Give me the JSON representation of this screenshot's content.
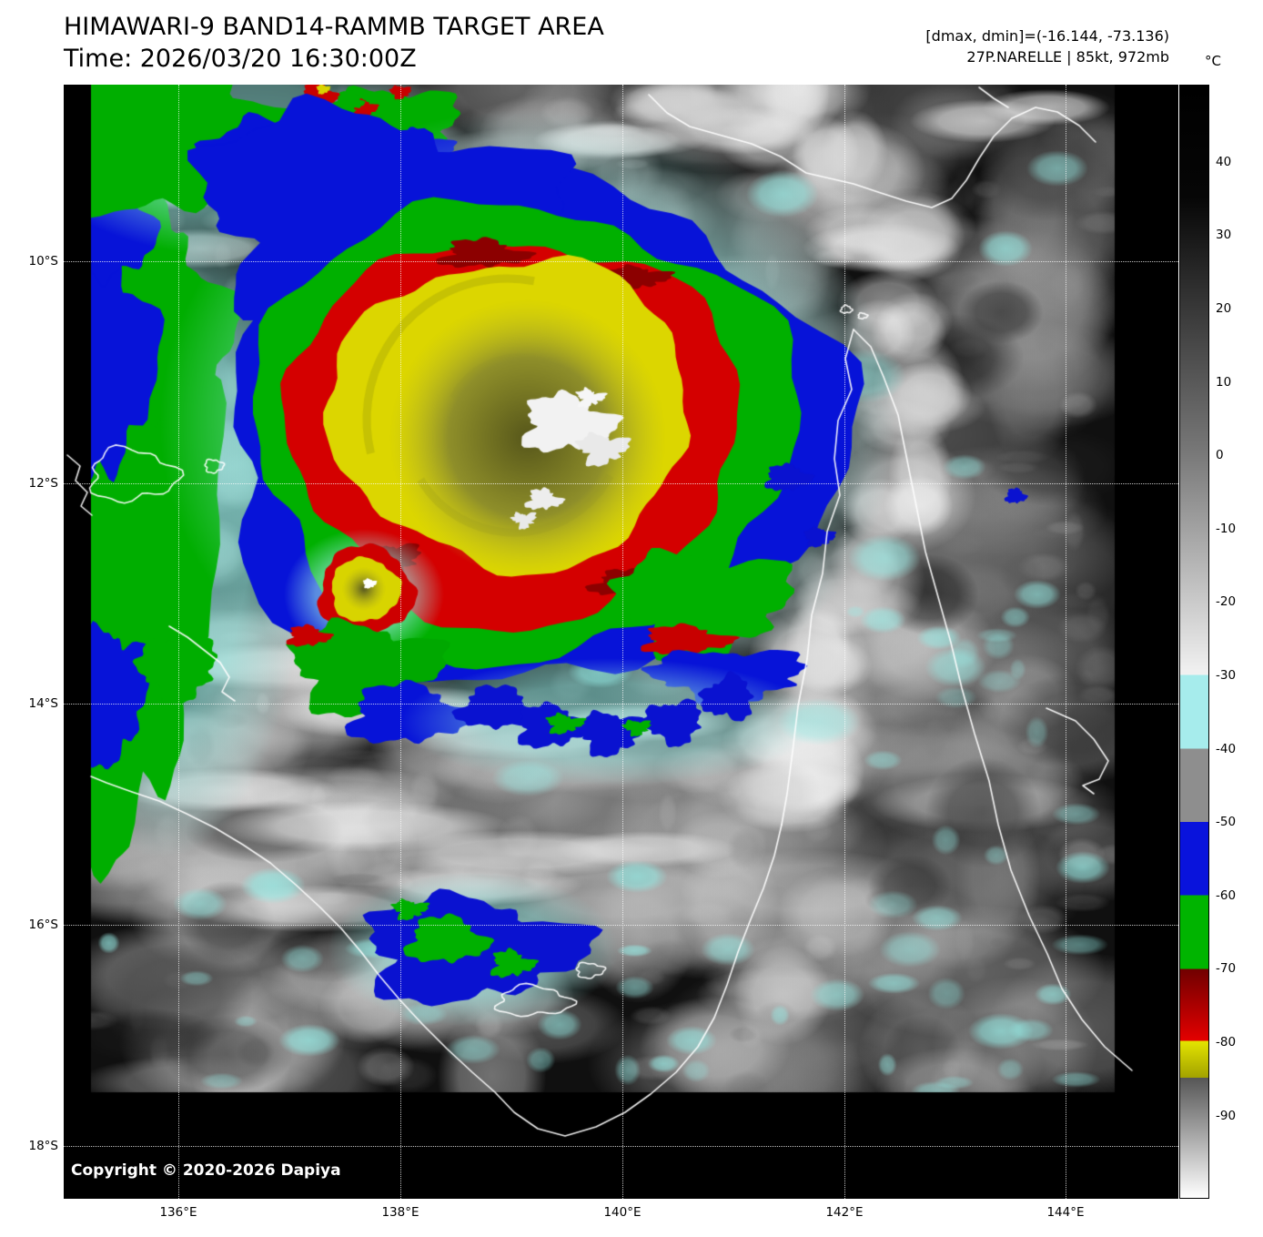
{
  "header": {
    "title": "HIMAWARI-9 BAND14-RAMMB TARGET AREA",
    "time_line": "Time: 2026/03/20 16:30:00Z",
    "dmax_dmin_line": "[dmax, dmin]=(-16.144, -73.136)",
    "storm_line": "27P.NARELLE | 85kt, 972mb"
  },
  "colorbar": {
    "unit_label": "°C",
    "ticks": [
      "40",
      "30",
      "20",
      "10",
      "0",
      "-10",
      "-20",
      "-30",
      "-40",
      "-50",
      "-60",
      "-70",
      "-80",
      "-90"
    ],
    "palette": {
      "warm_grayscale": [
        "#000000",
        "#f2f2f2"
      ],
      "cyan_band": "#a6ecec",
      "gray_band": "#8e8e8e",
      "blue_band": "#0913dc",
      "green_band": "#00b400",
      "red_band": [
        "#700000",
        "#e40000"
      ],
      "yellow_band": [
        "#e4e400",
        "#a2a200"
      ],
      "cold_gradient": [
        "#565656",
        "#ffffff"
      ]
    }
  },
  "axes": {
    "lat_labels": [
      "10°S",
      "12°S",
      "14°S",
      "16°S",
      "18°S"
    ],
    "lon_labels": [
      "136°E",
      "138°E",
      "140°E",
      "142°E",
      "144°E"
    ]
  },
  "overlay": {
    "copyright": "Copyright © 2020-2026 Dapiya"
  }
}
